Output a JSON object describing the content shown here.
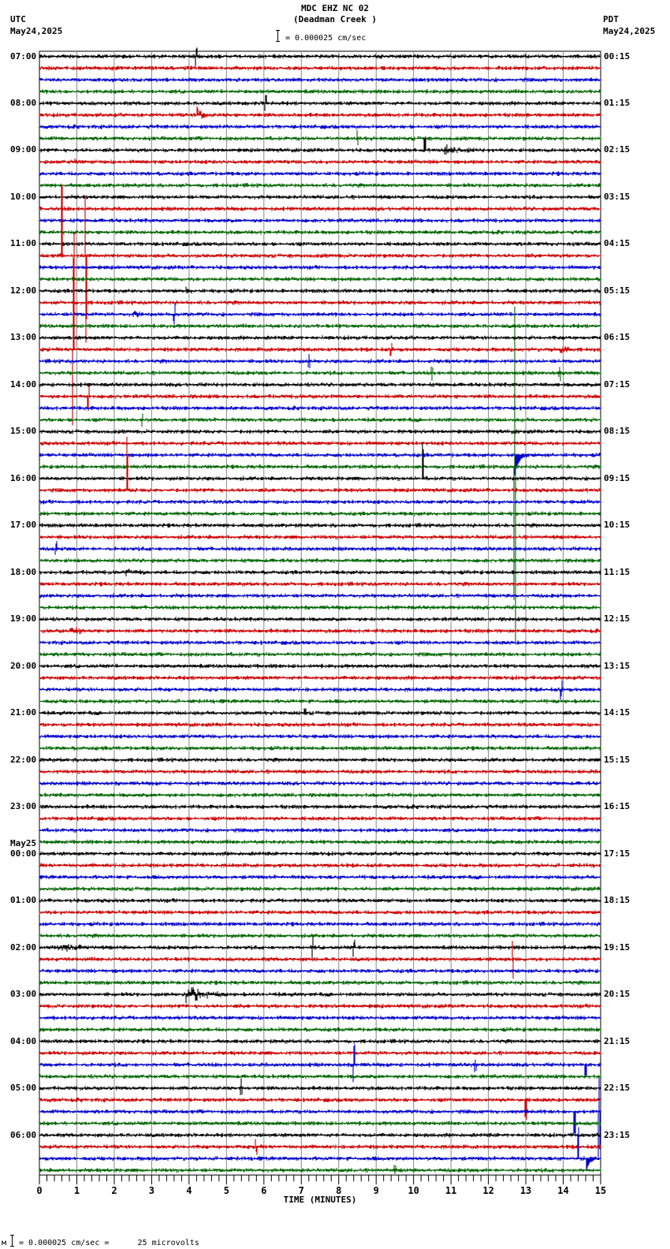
{
  "header": {
    "title": "MDC EHZ NC 02",
    "subtitle": "(Deadman Creek )",
    "scale_text": "= 0.000025 cm/sec",
    "left_tz": "UTC",
    "left_date": "May24,2025",
    "right_tz": "PDT",
    "right_date": "May24,2025"
  },
  "footer": {
    "scale_prefix": "м",
    "scale_text": "= 0.000025 cm/sec =      25 microvolts"
  },
  "colors": {
    "trace_cycle": [
      "#000000",
      "#cc0000",
      "#0000cc",
      "#006600"
    ],
    "grid": "#888888",
    "axis": "#000000"
  },
  "chart_data": {
    "type": "line",
    "title": "MDC EHZ NC 02 (Deadman Creek )",
    "xlabel": "TIME (MINUTES)",
    "ylabel": "",
    "xlim": [
      0,
      15
    ],
    "x_ticks": [
      "0",
      "1",
      "2",
      "3",
      "4",
      "5",
      "6",
      "7",
      "8",
      "9",
      "10",
      "11",
      "12",
      "13",
      "14",
      "15"
    ],
    "x_minor_tick_step": 0.2,
    "grid": true,
    "traces_per_hour": 4,
    "trace_minutes": 15,
    "num_traces": 96,
    "left_labels": [
      {
        "row": 0,
        "text": "07:00"
      },
      {
        "row": 4,
        "text": "08:00"
      },
      {
        "row": 8,
        "text": "09:00"
      },
      {
        "row": 12,
        "text": "10:00"
      },
      {
        "row": 16,
        "text": "11:00"
      },
      {
        "row": 20,
        "text": "12:00"
      },
      {
        "row": 24,
        "text": "13:00"
      },
      {
        "row": 28,
        "text": "14:00"
      },
      {
        "row": 32,
        "text": "15:00"
      },
      {
        "row": 36,
        "text": "16:00"
      },
      {
        "row": 40,
        "text": "17:00"
      },
      {
        "row": 44,
        "text": "18:00"
      },
      {
        "row": 48,
        "text": "19:00"
      },
      {
        "row": 52,
        "text": "20:00"
      },
      {
        "row": 56,
        "text": "21:00"
      },
      {
        "row": 60,
        "text": "22:00"
      },
      {
        "row": 64,
        "text": "23:00"
      },
      {
        "row": 68,
        "text": "00:00",
        "date": "May25"
      },
      {
        "row": 72,
        "text": "01:00"
      },
      {
        "row": 76,
        "text": "02:00"
      },
      {
        "row": 80,
        "text": "03:00"
      },
      {
        "row": 84,
        "text": "04:00"
      },
      {
        "row": 88,
        "text": "05:00"
      },
      {
        "row": 92,
        "text": "06:00"
      }
    ],
    "right_labels": [
      {
        "row": 0,
        "text": "00:15"
      },
      {
        "row": 4,
        "text": "01:15"
      },
      {
        "row": 8,
        "text": "02:15"
      },
      {
        "row": 12,
        "text": "03:15"
      },
      {
        "row": 16,
        "text": "04:15"
      },
      {
        "row": 20,
        "text": "05:15"
      },
      {
        "row": 24,
        "text": "06:15"
      },
      {
        "row": 28,
        "text": "07:15"
      },
      {
        "row": 32,
        "text": "08:15"
      },
      {
        "row": 36,
        "text": "09:15"
      },
      {
        "row": 40,
        "text": "10:15"
      },
      {
        "row": 44,
        "text": "11:15"
      },
      {
        "row": 48,
        "text": "12:15"
      },
      {
        "row": 52,
        "text": "13:15"
      },
      {
        "row": 56,
        "text": "14:15"
      },
      {
        "row": 60,
        "text": "15:15"
      },
      {
        "row": 64,
        "text": "16:15"
      },
      {
        "row": 68,
        "text": "17:15"
      },
      {
        "row": 72,
        "text": "18:15"
      },
      {
        "row": 76,
        "text": "19:15"
      },
      {
        "row": 80,
        "text": "20:15"
      },
      {
        "row": 84,
        "text": "21:15"
      },
      {
        "row": 88,
        "text": "22:15"
      },
      {
        "row": 92,
        "text": "23:15"
      }
    ],
    "events": [
      {
        "row": 0,
        "minute": 4.2,
        "amp": 10,
        "dur": 0.05,
        "kind": "spike"
      },
      {
        "row": 5,
        "minute": 4.2,
        "amp": 12,
        "dur": 0.3,
        "kind": "burst"
      },
      {
        "row": 4,
        "minute": 6.05,
        "amp": 14,
        "dur": 0.05,
        "kind": "spike"
      },
      {
        "row": 7,
        "minute": 8.5,
        "amp": 10,
        "dur": 0.05,
        "kind": "spike"
      },
      {
        "row": 8,
        "minute": 10.3,
        "amp": 18,
        "dur": 0.05,
        "kind": "spike"
      },
      {
        "row": 8,
        "minute": 10.8,
        "amp": 6,
        "dur": 0.9,
        "kind": "burst"
      },
      {
        "row": 9,
        "minute": 0.9,
        "amp": 4,
        "dur": 0.3,
        "kind": "burst"
      },
      {
        "row": 20,
        "minute": 3.9,
        "amp": 6,
        "dur": 0.2,
        "kind": "burst"
      },
      {
        "row": 22,
        "minute": 2.5,
        "amp": 10,
        "dur": 0.2,
        "kind": "burst"
      },
      {
        "row": 22,
        "minute": 3.6,
        "amp": 14,
        "dur": 0.05,
        "kind": "spike"
      },
      {
        "row": 17,
        "minute": 0.6,
        "amp": 120,
        "dur": 0.05,
        "kind": "spike"
      },
      {
        "row": 17,
        "minute": 1.25,
        "amp": 110,
        "dur": 0.05,
        "kind": "spike"
      },
      {
        "row": 25,
        "minute": 0.9,
        "amp": 150,
        "dur": 0.05,
        "kind": "spike"
      },
      {
        "row": 25,
        "minute": 9.4,
        "amp": 8,
        "dur": 0.1,
        "kind": "spike"
      },
      {
        "row": 25,
        "minute": 13.9,
        "amp": 6,
        "dur": 0.4,
        "kind": "burst"
      },
      {
        "row": 26,
        "minute": 7.2,
        "amp": 8,
        "dur": 0.1,
        "kind": "spike"
      },
      {
        "row": 27,
        "minute": 10.5,
        "amp": 8,
        "dur": 0.1,
        "kind": "spike"
      },
      {
        "row": 27,
        "minute": 13.9,
        "amp": 8,
        "dur": 0.1,
        "kind": "spike"
      },
      {
        "row": 29,
        "minute": 1.3,
        "amp": 20,
        "dur": 0.05,
        "kind": "spike"
      },
      {
        "row": 31,
        "minute": 2.75,
        "amp": 10,
        "dur": 0.05,
        "kind": "spike"
      },
      {
        "row": 34,
        "minute": 12.7,
        "amp": 25,
        "dur": 0.4,
        "kind": "decay"
      },
      {
        "row": 35,
        "minute": 12.7,
        "amp": 250,
        "dur": 0.05,
        "kind": "spike"
      },
      {
        "row": 36,
        "minute": 10.25,
        "amp": 55,
        "dur": 0.05,
        "kind": "spike"
      },
      {
        "row": 37,
        "minute": 2.35,
        "amp": 70,
        "dur": 0.05,
        "kind": "spike"
      },
      {
        "row": 42,
        "minute": 0.45,
        "amp": 8,
        "dur": 0.1,
        "kind": "spike"
      },
      {
        "row": 44,
        "minute": 2.3,
        "amp": 6,
        "dur": 0.5,
        "kind": "burst"
      },
      {
        "row": 49,
        "minute": 0.8,
        "amp": 6,
        "dur": 0.5,
        "kind": "burst"
      },
      {
        "row": 54,
        "minute": 13.95,
        "amp": 12,
        "dur": 0.05,
        "kind": "spike"
      },
      {
        "row": 56,
        "minute": 7.1,
        "amp": 6,
        "dur": 0.05,
        "kind": "spike"
      },
      {
        "row": 76,
        "minute": 7.3,
        "amp": 14,
        "dur": 0.1,
        "kind": "spike"
      },
      {
        "row": 76,
        "minute": 8.4,
        "amp": 10,
        "dur": 0.05,
        "kind": "spike"
      },
      {
        "row": 76,
        "minute": 0.5,
        "amp": 5,
        "dur": 1.0,
        "kind": "burst"
      },
      {
        "row": 77,
        "minute": 12.65,
        "amp": 25,
        "dur": 0.05,
        "kind": "spike"
      },
      {
        "row": 80,
        "minute": 3.9,
        "amp": 12,
        "dur": 1.0,
        "kind": "burst"
      },
      {
        "row": 86,
        "minute": 8.4,
        "amp": 28,
        "dur": 0.05,
        "kind": "spike"
      },
      {
        "row": 86,
        "minute": 11.65,
        "amp": 8,
        "dur": 0.05,
        "kind": "spike"
      },
      {
        "row": 86,
        "minute": 14.6,
        "amp": 14,
        "dur": 0.05,
        "kind": "spike"
      },
      {
        "row": 88,
        "minute": 5.4,
        "amp": 10,
        "dur": 0.05,
        "kind": "spike"
      },
      {
        "row": 89,
        "minute": 13.0,
        "amp": 30,
        "dur": 0.05,
        "kind": "spike"
      },
      {
        "row": 90,
        "minute": 14.3,
        "amp": 40,
        "dur": 0.05,
        "kind": "spike"
      },
      {
        "row": 90,
        "minute": 14.95,
        "amp": 60,
        "dur": 0.05,
        "kind": "spike"
      },
      {
        "row": 93,
        "minute": 5.8,
        "amp": 10,
        "dur": 0.05,
        "kind": "spike"
      },
      {
        "row": 94,
        "minute": 14.4,
        "amp": 40,
        "dur": 0.05,
        "kind": "spike"
      },
      {
        "row": 94,
        "minute": 14.6,
        "amp": 18,
        "dur": 0.3,
        "kind": "decay"
      },
      {
        "row": 95,
        "minute": 9.5,
        "amp": 6,
        "dur": 0.05,
        "kind": "spike"
      }
    ]
  }
}
